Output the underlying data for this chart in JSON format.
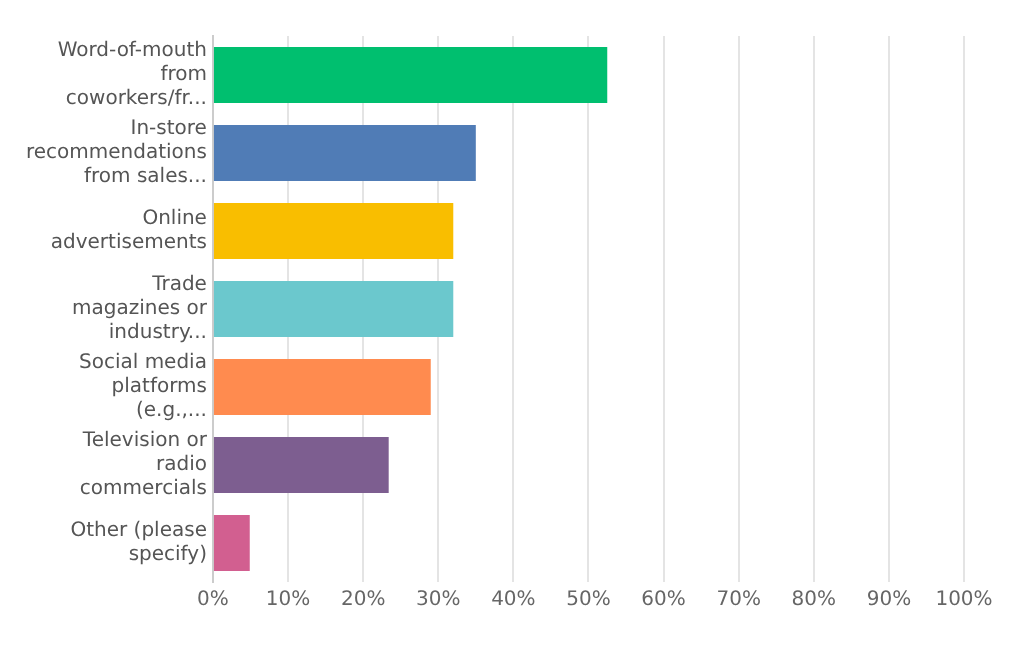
{
  "chart_data": {
    "type": "bar",
    "orientation": "horizontal",
    "categories": [
      "Word-of-mouth from coworkers/fr...",
      "In-store recommendations from sales...",
      "Online advertisements",
      "Trade magazines or industry...",
      "Social media platforms (e.g.,...",
      "Television or radio commercials",
      "Other (please specify)"
    ],
    "values": [
      52.5,
      35,
      32,
      32,
      29,
      23.4,
      4.9
    ],
    "colors": [
      "#00bf6f",
      "#507cb6",
      "#f9be00",
      "#6bc8cd",
      "#ff8b4f",
      "#7d5e90",
      "#d25f90"
    ],
    "xlim": [
      0,
      100
    ],
    "xticks": [
      {
        "value": 0,
        "label": "0%"
      },
      {
        "value": 10,
        "label": "10%"
      },
      {
        "value": 20,
        "label": "20%"
      },
      {
        "value": 30,
        "label": "30%"
      },
      {
        "value": 40,
        "label": "40%"
      },
      {
        "value": 50,
        "label": "50%"
      },
      {
        "value": 60,
        "label": "60%"
      },
      {
        "value": 70,
        "label": "70%"
      },
      {
        "value": 80,
        "label": "80%"
      },
      {
        "value": 90,
        "label": "90%"
      },
      {
        "value": 100,
        "label": "100%"
      }
    ],
    "grid": "x"
  }
}
